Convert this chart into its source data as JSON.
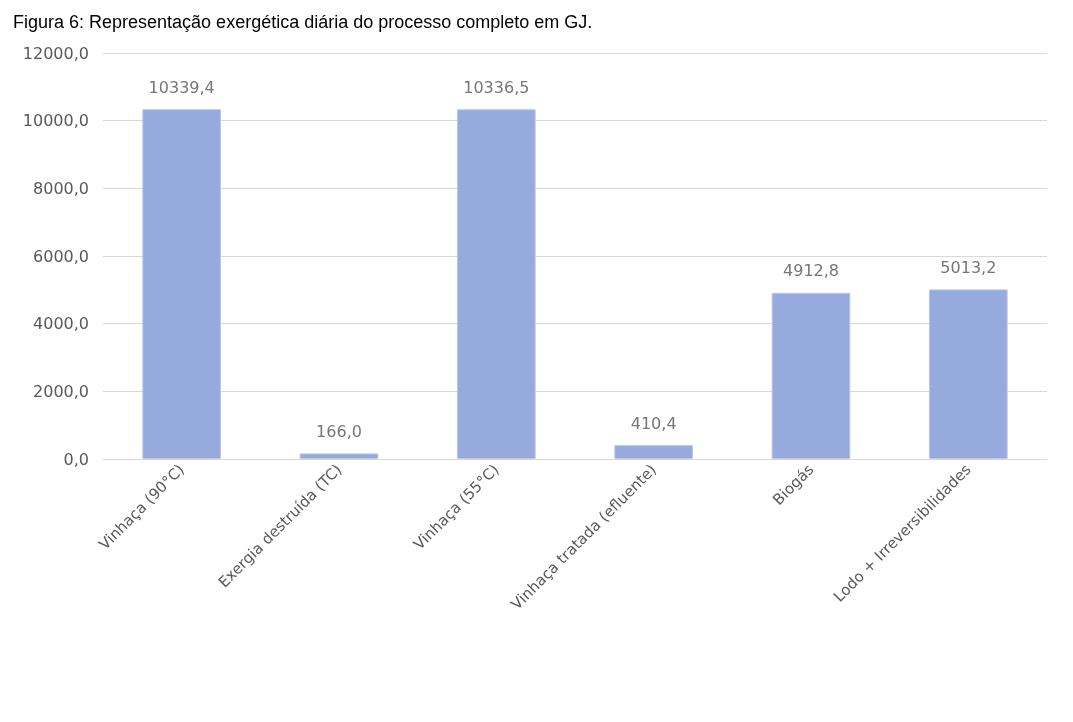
{
  "chart_data": {
    "type": "bar",
    "title": "Figura 6: Representação exergética diária do processo completo em GJ.",
    "categories": [
      "Vinhaça (90°C)",
      "Exergia destruída (TC)",
      "Vinhaça (55°C)",
      "Vinhaça tratada (efluente)",
      "Biogás",
      "Lodo + Irreversibilidades"
    ],
    "values": [
      10339.4,
      166.0,
      10336.5,
      410.4,
      4912.8,
      5013.2
    ],
    "color": "#97aade",
    "ylim": [
      0,
      12000
    ],
    "yticks": [
      {
        "value": 0,
        "label": "0,0"
      },
      {
        "value": 2000,
        "label": "2000,0"
      },
      {
        "value": 4000,
        "label": "4000,0"
      },
      {
        "value": 6000,
        "label": "6000,0"
      },
      {
        "value": 8000,
        "label": "8000,0"
      },
      {
        "value": 10000,
        "label": "10000,0"
      },
      {
        "value": 12000,
        "label": "12000,0"
      }
    ],
    "value_labels": [
      "10339,4",
      "166,0",
      "10336,5",
      "410,4",
      "4912,8",
      "5013,2"
    ],
    "grid": "y"
  }
}
